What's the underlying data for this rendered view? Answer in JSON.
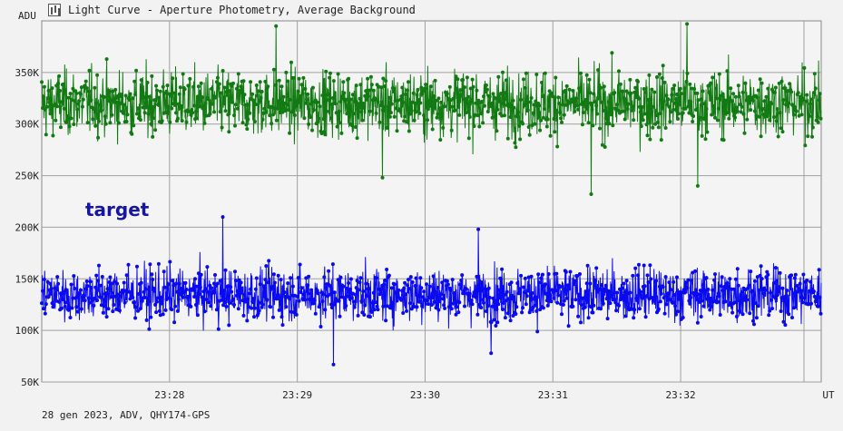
{
  "window": {
    "title": "Light Curve - Aperture Photometry, Average Background",
    "icon": "chart-window-icon"
  },
  "footer": {
    "text": "28 gen 2023, ADV, QHY174-GPS"
  },
  "colors": {
    "background": "#f2f2f2",
    "plot_bg": "#f4f4f4",
    "grid": "#a0a0a0",
    "series_background": "#127a12",
    "series_target": "#0a0aee",
    "annotation": "#1616a0"
  },
  "chart_data": {
    "type": "line",
    "title": "Light Curve - Aperture Photometry, Average Background",
    "ylabel": "ADU",
    "xlabel": "UT",
    "ylim": [
      50000,
      400000
    ],
    "xlim": [
      "23:27:00",
      "23:33:06"
    ],
    "y_ticks": [
      "50K",
      "100K",
      "150K",
      "200K",
      "250K",
      "300K",
      "350K"
    ],
    "x_ticks": [
      "23:28",
      "23:29",
      "23:30",
      "23:31",
      "23:32"
    ],
    "grid": true,
    "annotations": [
      "target"
    ],
    "n_points_per_series": 1800,
    "series": [
      {
        "color": "#127a12",
        "mean": 320000,
        "spread": 22000,
        "min": 232000,
        "max": 397000,
        "notable": [
          {
            "x": "23:28:50",
            "y": 395000
          },
          {
            "x": "23:32:03",
            "y": 397000
          },
          {
            "x": "23:31:18",
            "y": 232000
          },
          {
            "x": "23:32:08",
            "y": 240000
          },
          {
            "x": "23:29:40",
            "y": 248000
          }
        ]
      },
      {
        "color": "#0a0aee",
        "mean": 135000,
        "spread": 18000,
        "min": 67000,
        "max": 210000,
        "notable": [
          {
            "x": "23:28:25",
            "y": 210000
          },
          {
            "x": "23:30:25",
            "y": 198000
          },
          {
            "x": "23:29:17",
            "y": 67000
          },
          {
            "x": "23:30:31",
            "y": 78000
          }
        ]
      }
    ]
  }
}
